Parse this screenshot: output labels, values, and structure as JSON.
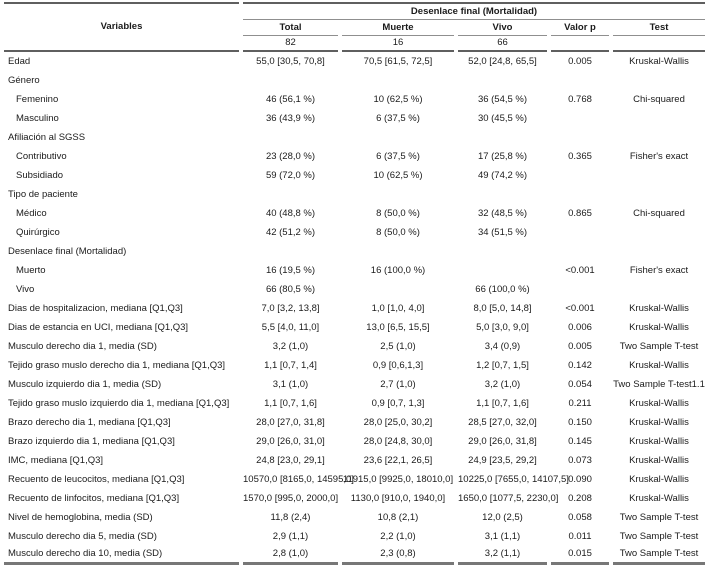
{
  "table": {
    "span_header": "Desenlace final (Mortalidad)",
    "columns": [
      "Variables",
      "Total",
      "Muerte",
      "Vivo",
      "Valor p",
      "Test"
    ],
    "counts": [
      "82",
      "16",
      "66",
      "",
      ""
    ],
    "rows": [
      {
        "label": "Edad",
        "indent": 0,
        "total": "55,0 [30,5, 70,8]",
        "muerte": "70,5 [61,5, 72,5]",
        "vivo": "52,0 [24,8, 65,5]",
        "p": "0.005",
        "test": "Kruskal-Wallis"
      },
      {
        "label": "Género",
        "indent": 0,
        "total": "",
        "muerte": "",
        "vivo": "",
        "p": "",
        "test": ""
      },
      {
        "label": "Femenino",
        "indent": 1,
        "total": "46 (56,1 %)",
        "muerte": "10 (62,5 %)",
        "vivo": "36 (54,5 %)",
        "p": "0.768",
        "test": "Chi-squared"
      },
      {
        "label": "Masculino",
        "indent": 1,
        "total": "36 (43,9 %)",
        "muerte": "6 (37,5 %)",
        "vivo": "30 (45,5 %)",
        "p": "",
        "test": ""
      },
      {
        "label": "Afiliación al SGSS",
        "indent": 0,
        "total": "",
        "muerte": "",
        "vivo": "",
        "p": "",
        "test": ""
      },
      {
        "label": "Contributivo",
        "indent": 1,
        "total": "23 (28,0 %)",
        "muerte": "6 (37,5 %)",
        "vivo": "17 (25,8 %)",
        "p": "0.365",
        "test": "Fisher's exact"
      },
      {
        "label": "Subsidiado",
        "indent": 1,
        "total": "59 (72,0 %)",
        "muerte": "10 (62,5 %)",
        "vivo": "49 (74,2 %)",
        "p": "",
        "test": ""
      },
      {
        "label": "Tipo de paciente",
        "indent": 0,
        "total": "",
        "muerte": "",
        "vivo": "",
        "p": "",
        "test": ""
      },
      {
        "label": "Médico",
        "indent": 1,
        "total": "40 (48,8 %)",
        "muerte": "8 (50,0 %)",
        "vivo": "32 (48,5 %)",
        "p": "0.865",
        "test": "Chi-squared"
      },
      {
        "label": "Quirúrgico",
        "indent": 1,
        "total": "42 (51,2 %)",
        "muerte": "8 (50,0 %)",
        "vivo": "34 (51,5 %)",
        "p": "",
        "test": ""
      },
      {
        "label": "Desenlace final (Mortalidad)",
        "indent": 0,
        "total": "",
        "muerte": "",
        "vivo": "",
        "p": "",
        "test": ""
      },
      {
        "label": "Muerto",
        "indent": 1,
        "total": "16 (19,5 %)",
        "muerte": "16 (100,0 %)",
        "vivo": "",
        "p": "<0.001",
        "test": "Fisher's exact"
      },
      {
        "label": "Vivo",
        "indent": 1,
        "total": "66 (80,5 %)",
        "muerte": "",
        "vivo": "66 (100,0 %)",
        "p": "",
        "test": ""
      },
      {
        "label": "Dias de hospitalizacion, mediana [Q1,Q3]",
        "indent": 0,
        "total": "7,0 [3,2, 13,8]",
        "muerte": "1,0 [1,0, 4,0]",
        "vivo": "8,0 [5,0, 14,8]",
        "p": "<0.001",
        "test": "Kruskal-Wallis"
      },
      {
        "label": "Dias de estancia en UCI, mediana [Q1,Q3]",
        "indent": 0,
        "total": "5,5 [4,0, 11,0]",
        "muerte": "13,0 [6,5, 15,5]",
        "vivo": "5,0 [3,0, 9,0]",
        "p": "0.006",
        "test": "Kruskal-Wallis"
      },
      {
        "label": "Musculo derecho dia 1, media (SD)",
        "indent": 0,
        "total": "3,2 (1,0)",
        "muerte": "2,5 (1,0)",
        "vivo": "3,4 (0,9)",
        "p": "0.005",
        "test": "Two Sample T-test"
      },
      {
        "label": "Tejido graso muslo derecho dia 1, mediana [Q1,Q3]",
        "indent": 0,
        "total": "1,1 [0,7, 1,4]",
        "muerte": "0,9 [0,6,1,3]",
        "vivo": "1,2 [0,7, 1,5]",
        "p": "0.142",
        "test": "Kruskal-Wallis"
      },
      {
        "label": "Musculo izquierdo dia 1, media (SD)",
        "indent": 0,
        "total": "3,1 (1,0)",
        "muerte": "2,7 (1,0)",
        "vivo": "3,2 (1,0)",
        "p": "0.054",
        "test": "Two Sample T-test1.1"
      },
      {
        "label": "Tejido graso muslo izquierdo dia 1, mediana [Q1,Q3]",
        "indent": 0,
        "total": "1,1 [0,7, 1,6]",
        "muerte": "0,9 [0,7, 1,3]",
        "vivo": "1,1 [0,7, 1,6]",
        "p": "0.211",
        "test": "Kruskal-Wallis"
      },
      {
        "label": "Brazo derecho dia 1, mediana [Q1,Q3]",
        "indent": 0,
        "total": "28,0 [27,0, 31,8]",
        "muerte": "28,0 [25,0, 30,2]",
        "vivo": "28,5 [27,0, 32,0]",
        "p": "0.150",
        "test": "Kruskal-Wallis"
      },
      {
        "label": "Brazo izquierdo dia 1, mediana [Q1,Q3]",
        "indent": 0,
        "total": "29,0 [26,0, 31,0]",
        "muerte": "28,0 [24,8, 30,0]",
        "vivo": "29,0 [26,0, 31,8]",
        "p": "0.145",
        "test": "Kruskal-Wallis"
      },
      {
        "label": "IMC, mediana [Q1,Q3]",
        "indent": 0,
        "total": "24,8 [23,0, 29,1]",
        "muerte": "23,6 [22,1, 26,5]",
        "vivo": "24,9 [23,5, 29,2]",
        "p": "0.073",
        "test": "Kruskal-Wallis"
      },
      {
        "label": "Recuento de leucocitos, mediana [Q1,Q3]",
        "indent": 0,
        "total": "10570,0 [8165,0, 14595,0]",
        "muerte": "11915,0 [9925,0, 18010,0]",
        "vivo": "10225,0 [7655,0, 14107,5]",
        "p": "0.090",
        "test": "Kruskal-Wallis"
      },
      {
        "label": "Recuento de linfocitos, mediana [Q1,Q3]",
        "indent": 0,
        "total": "1570,0 [995,0, 2000,0]",
        "muerte": "1130,0 [910,0, 1940,0]",
        "vivo": "1650,0 [1077,5, 2230,0]",
        "p": "0.208",
        "test": "Kruskal-Wallis"
      },
      {
        "label": "Nivel de hemoglobina, media (SD)",
        "indent": 0,
        "total": "11,8 (2,4)",
        "muerte": "10,8 (2,1)",
        "vivo": "12,0 (2,5)",
        "p": "0.058",
        "test": "Two Sample T-test"
      },
      {
        "label": "Musculo derecho dia 5, media (SD)",
        "indent": 0,
        "total": "2,9 (1,1)",
        "muerte": "2,2 (1,0)",
        "vivo": "3,1 (1,1)",
        "p": "0.011",
        "test": "Two Sample T-test"
      },
      {
        "label": "Musculo derecho dia 10, media (SD)",
        "indent": 0,
        "total": "2,8 (1,0)",
        "muerte": "2,3 (0,8)",
        "vivo": "3,2 (1,1)",
        "p": "0.015",
        "test": "Two Sample T-test"
      }
    ]
  }
}
